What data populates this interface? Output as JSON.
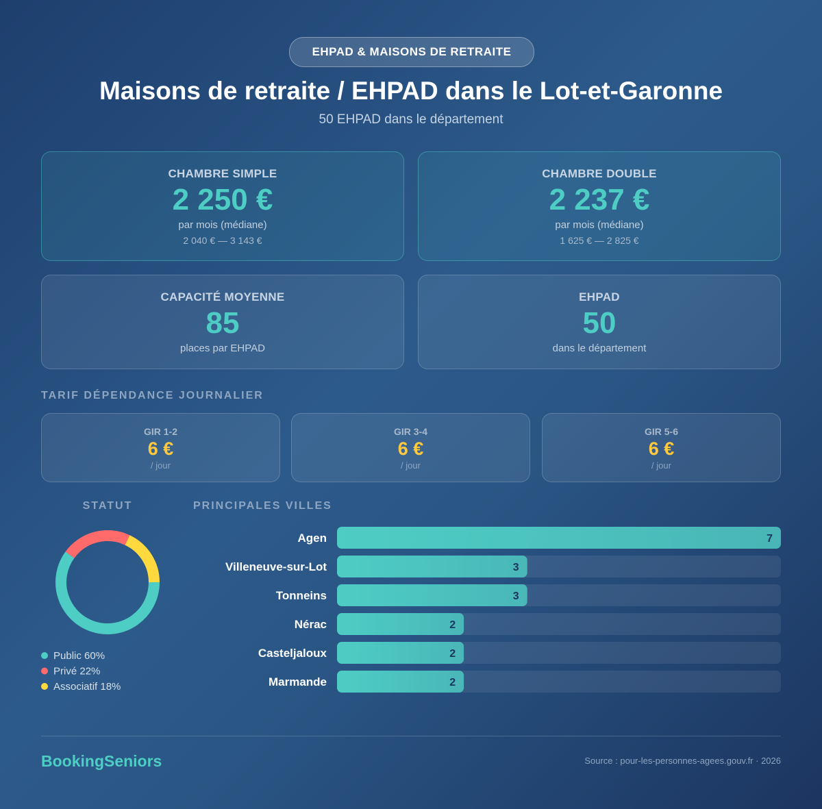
{
  "header": {
    "badge": "EHPAD & MAISONS DE RETRAITE",
    "title": "Maisons de retraite / EHPAD dans le Lot-et-Garonne",
    "subtitle": "50 EHPAD dans le département"
  },
  "cards": [
    {
      "label": "CHAMBRE SIMPLE",
      "value": "2 250 €",
      "note": "par mois (médiane)",
      "range": "2 040 € — 3 143 €"
    },
    {
      "label": "CHAMBRE DOUBLE",
      "value": "2 237 €",
      "note": "par mois (médiane)",
      "range": "1 625 € — 2 825 €"
    },
    {
      "label": "CAPACITÉ MOYENNE",
      "value": "85",
      "note": "places par EHPAD"
    },
    {
      "label": "EHPAD",
      "value": "50",
      "note": "dans le département"
    }
  ],
  "gir": {
    "title": "TARIF DÉPENDANCE JOURNALIER",
    "items": [
      {
        "label": "GIR 1-2",
        "value": "6 €",
        "unit": "/ jour"
      },
      {
        "label": "GIR 3-4",
        "value": "6 €",
        "unit": "/ jour"
      },
      {
        "label": "GIR 5-6",
        "value": "6 €",
        "unit": "/ jour"
      }
    ]
  },
  "chart_data": [
    {
      "type": "pie",
      "title": "STATUT",
      "categories": [
        "Public",
        "Privé",
        "Associatif"
      ],
      "values": [
        60,
        22,
        18
      ],
      "value_labels": [
        "60%",
        "22%",
        "18%"
      ],
      "colors": [
        "#4ecdc4",
        "#ff6b6b",
        "#ffd93d"
      ]
    },
    {
      "type": "bar",
      "orientation": "horizontal",
      "title": "PRINCIPALES VILLES",
      "categories": [
        "Agen",
        "Villeneuve-sur-Lot",
        "Tonneins",
        "Nérac",
        "Casteljaloux",
        "Marmande"
      ],
      "values": [
        7,
        3,
        3,
        2,
        2,
        2
      ],
      "xlim": [
        0,
        7
      ],
      "color": "#4ecdc4"
    }
  ],
  "footer": {
    "brand": "BookingSeniors",
    "source": "Source : pour-les-personnes-agees.gouv.fr · 2026"
  }
}
